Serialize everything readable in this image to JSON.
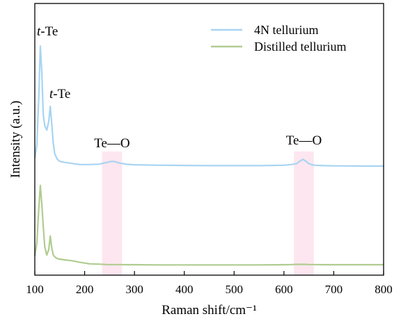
{
  "chart_data": {
    "type": "line",
    "xlabel": "Raman shift/cm⁻¹",
    "ylabel": "Intensity (a.u.)",
    "xlim": [
      100,
      800
    ],
    "xticks": [
      "100",
      "200",
      "300",
      "400",
      "500",
      "600",
      "700",
      "800"
    ],
    "y_ticks_shown": false,
    "grid": false,
    "legend_position": "top-right",
    "series": [
      {
        "name": "4N tellurium",
        "color": "#a8d4f2",
        "x": [
          100,
          104,
          108,
          111,
          114,
          117,
          120,
          124,
          128,
          131,
          134,
          137,
          140,
          145,
          150,
          160,
          175,
          190,
          210,
          230,
          245,
          255,
          262,
          270,
          285,
          300,
          350,
          400,
          450,
          500,
          550,
          600,
          615,
          625,
          632,
          638,
          643,
          650,
          660,
          680,
          700,
          750,
          800
        ],
        "y": [
          0.6,
          1.2,
          3.4,
          5.8,
          4.6,
          2.6,
          2.1,
          1.9,
          2.3,
          3.0,
          2.2,
          1.3,
          0.8,
          0.55,
          0.45,
          0.4,
          0.35,
          0.3,
          0.3,
          0.32,
          0.4,
          0.45,
          0.43,
          0.37,
          0.31,
          0.29,
          0.27,
          0.26,
          0.25,
          0.25,
          0.25,
          0.27,
          0.3,
          0.34,
          0.46,
          0.54,
          0.48,
          0.34,
          0.27,
          0.25,
          0.24,
          0.23,
          0.23
        ]
      },
      {
        "name": "Distilled tellurium",
        "color": "#b0cc90",
        "x": [
          100,
          104,
          108,
          111,
          114,
          117,
          120,
          124,
          128,
          131,
          134,
          137,
          140,
          145,
          150,
          160,
          175,
          190,
          210,
          230,
          245,
          255,
          262,
          270,
          285,
          300,
          350,
          400,
          450,
          500,
          550,
          600,
          615,
          625,
          632,
          638,
          643,
          650,
          660,
          680,
          700,
          750,
          800
        ],
        "y": [
          0.6,
          1.3,
          3.2,
          4.5,
          3.5,
          2.2,
          1.1,
          0.65,
          0.95,
          1.7,
          1.05,
          0.65,
          0.55,
          0.45,
          0.42,
          0.38,
          0.33,
          0.25,
          0.16,
          0.14,
          0.12,
          0.12,
          0.12,
          0.12,
          0.11,
          0.11,
          0.1,
          0.1,
          0.1,
          0.1,
          0.1,
          0.11,
          0.12,
          0.13,
          0.13,
          0.13,
          0.13,
          0.12,
          0.12,
          0.11,
          0.11,
          0.11,
          0.11
        ]
      }
    ],
    "shaded_bands": [
      {
        "x": [
          235,
          275
        ],
        "color": "#fde6ef",
        "label": "Te—O"
      },
      {
        "x": [
          620,
          660
        ],
        "color": "#fde6ef",
        "label": "Te—O"
      }
    ],
    "annotations": [
      {
        "text_italic": "t",
        "text": "-Te",
        "x": 111,
        "series": 0
      },
      {
        "text_italic": "t",
        "text": "-Te",
        "x": 131,
        "series": 0
      }
    ]
  }
}
